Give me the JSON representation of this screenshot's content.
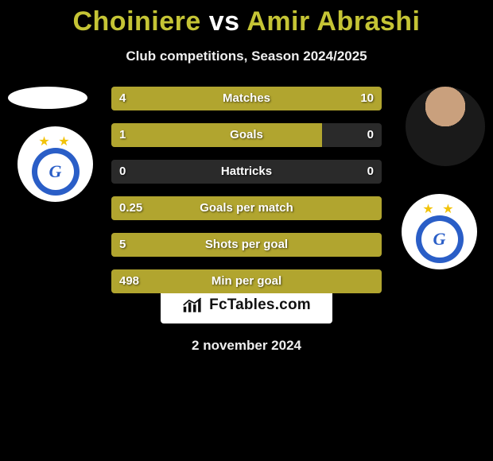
{
  "header": {
    "player1": "Choiniere",
    "vs": "vs",
    "player2": "Amir Abrashi",
    "subtitle": "Club competitions, Season 2024/2025"
  },
  "colors": {
    "bar_fill": "#b1a52f",
    "bar_bg": "#2a2a2a",
    "title": "#c5c435",
    "crest_blue": "#2a5ec7",
    "star": "#f2c30a"
  },
  "stats": [
    {
      "label": "Matches",
      "l": "4",
      "r": "10",
      "l_pct": 28,
      "r_pct": 72
    },
    {
      "label": "Goals",
      "l": "1",
      "r": "0",
      "l_pct": 78,
      "r_pct": 0
    },
    {
      "label": "Hattricks",
      "l": "0",
      "r": "0",
      "l_pct": 0,
      "r_pct": 0
    },
    {
      "label": "Goals per match",
      "l": "0.25",
      "r": "",
      "l_pct": 100,
      "r_pct": 0
    },
    {
      "label": "Shots per goal",
      "l": "5",
      "r": "",
      "l_pct": 100,
      "r_pct": 0
    },
    {
      "label": "Min per goal",
      "l": "498",
      "r": "",
      "l_pct": 100,
      "r_pct": 0
    }
  ],
  "footer": {
    "brand": "FcTables.com",
    "date": "2 november 2024"
  },
  "crest": {
    "monogram": "G"
  }
}
